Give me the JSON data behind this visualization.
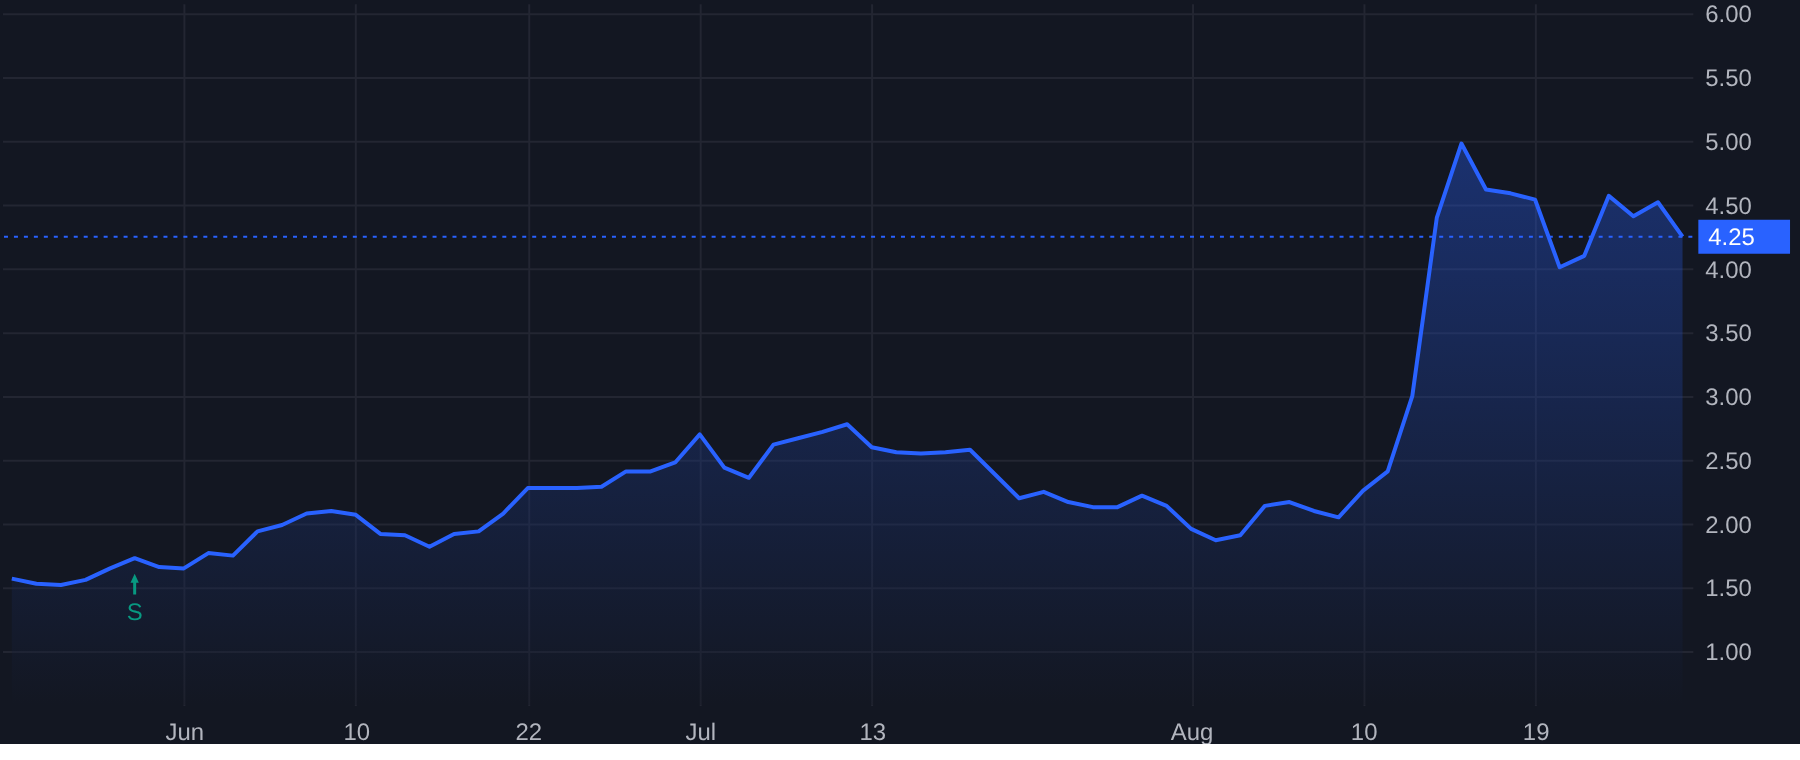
{
  "chart_data": {
    "type": "area",
    "categories": [
      null,
      null,
      null,
      null,
      null,
      null,
      null,
      "Jun",
      null,
      null,
      null,
      null,
      null,
      null,
      "10",
      null,
      null,
      null,
      null,
      null,
      null,
      "22",
      null,
      null,
      null,
      null,
      null,
      null,
      "Jul",
      null,
      null,
      null,
      null,
      null,
      null,
      "13",
      null,
      null,
      null,
      null,
      null,
      null,
      null,
      null,
      null,
      null,
      null,
      null,
      "Aug",
      null,
      null,
      null,
      null,
      null,
      null,
      "10",
      null,
      null,
      null,
      null,
      null,
      null,
      "19",
      null,
      null,
      null,
      null,
      null,
      null
    ],
    "series": [
      {
        "color": "#2962ff",
        "values": [
          1.57,
          1.53,
          1.52,
          1.56,
          1.65,
          1.73,
          1.66,
          1.65,
          1.77,
          1.75,
          1.94,
          1.99,
          2.08,
          2.1,
          2.07,
          1.92,
          1.91,
          1.82,
          1.92,
          1.94,
          2.08,
          2.28,
          2.28,
          2.28,
          2.29,
          2.41,
          2.41,
          2.48,
          2.7,
          2.44,
          2.36,
          2.62,
          2.67,
          2.72,
          2.78,
          2.6,
          2.56,
          2.55,
          2.56,
          2.58,
          2.39,
          2.2,
          2.25,
          2.17,
          2.13,
          2.13,
          2.22,
          2.14,
          1.96,
          1.87,
          1.91,
          2.14,
          2.17,
          2.1,
          2.05,
          2.26,
          2.41,
          3.0,
          4.4,
          4.98,
          4.62,
          4.59,
          4.54,
          4.01,
          4.1,
          4.57,
          4.41,
          4.52,
          4.25
        ]
      }
    ],
    "ylim": [
      0.58,
      6.08
    ],
    "yticks": [
      {
        "value": 1,
        "label": "1.00"
      },
      {
        "value": 1.5,
        "label": "1.50"
      },
      {
        "value": 2,
        "label": "2.00"
      },
      {
        "value": 2.5,
        "label": "2.50"
      },
      {
        "value": 3,
        "label": "3.00"
      },
      {
        "value": 3.5,
        "label": "3.50"
      },
      {
        "value": 4,
        "label": "4.00"
      },
      {
        "value": 4.5,
        "label": "4.50"
      },
      {
        "value": 5,
        "label": "5.00"
      },
      {
        "value": 5.5,
        "label": "5.50"
      },
      {
        "value": 6,
        "label": "6.00"
      }
    ],
    "ref_lines": [
      {
        "axis": "y",
        "value": 4.25,
        "label": "4.25",
        "color": "#2962ff",
        "line_style": "dotted"
      }
    ],
    "annotations": [
      {
        "text": "S",
        "y": 1.73
      }
    ],
    "grid": true,
    "marker": "none",
    "line_style": "solid"
  }
}
